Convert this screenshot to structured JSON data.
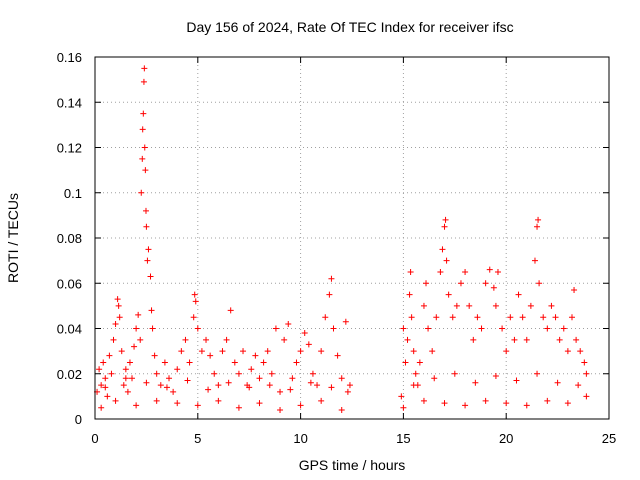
{
  "chart_data": {
    "type": "scatter",
    "title": "Day 156 of 2024, Rate Of TEC Index for receiver ifsc",
    "xlabel": "GPS time / hours",
    "ylabel": "ROTI / TECUs",
    "xlim": [
      0,
      25
    ],
    "ylim": [
      0,
      0.16
    ],
    "xticks": [
      0,
      5,
      10,
      15,
      20,
      25
    ],
    "yticks": [
      0,
      0.02,
      0.04,
      0.06,
      0.08,
      0.1,
      0.12,
      0.14,
      0.16
    ],
    "xtick_labels": [
      "0",
      "5",
      "10",
      "15",
      "20",
      "25"
    ],
    "ytick_labels": [
      "0",
      "0.02",
      "0.04",
      "0.06",
      "0.08",
      "0.1",
      "0.12",
      "0.14",
      "0.16"
    ],
    "grid": true,
    "marker": "+",
    "color": "#ff0000",
    "gaps_hours": [
      [
        12.5,
        14.8
      ]
    ],
    "series": [
      {
        "name": "ROTI",
        "points": [
          [
            0.1,
            0.012
          ],
          [
            0.2,
            0.022
          ],
          [
            0.3,
            0.015
          ],
          [
            0.4,
            0.025
          ],
          [
            0.5,
            0.018
          ],
          [
            0.6,
            0.01
          ],
          [
            0.7,
            0.028
          ],
          [
            0.8,
            0.02
          ],
          [
            0.9,
            0.035
          ],
          [
            1.0,
            0.042
          ],
          [
            1.1,
            0.053
          ],
          [
            1.15,
            0.05
          ],
          [
            1.2,
            0.045
          ],
          [
            1.3,
            0.03
          ],
          [
            1.4,
            0.015
          ],
          [
            1.5,
            0.022
          ],
          [
            1.6,
            0.012
          ],
          [
            1.7,
            0.025
          ],
          [
            1.8,
            0.018
          ],
          [
            1.9,
            0.032
          ],
          [
            2.0,
            0.04
          ],
          [
            2.1,
            0.046
          ],
          [
            2.2,
            0.035
          ],
          [
            2.25,
            0.1
          ],
          [
            2.3,
            0.115
          ],
          [
            2.32,
            0.128
          ],
          [
            2.35,
            0.135
          ],
          [
            2.38,
            0.149
          ],
          [
            2.4,
            0.155
          ],
          [
            2.42,
            0.12
          ],
          [
            2.45,
            0.11
          ],
          [
            2.48,
            0.092
          ],
          [
            2.5,
            0.085
          ],
          [
            2.55,
            0.07
          ],
          [
            2.6,
            0.075
          ],
          [
            2.7,
            0.063
          ],
          [
            2.75,
            0.048
          ],
          [
            2.8,
            0.04
          ],
          [
            2.9,
            0.028
          ],
          [
            3.0,
            0.02
          ],
          [
            3.2,
            0.015
          ],
          [
            3.4,
            0.025
          ],
          [
            3.6,
            0.018
          ],
          [
            3.8,
            0.012
          ],
          [
            4.0,
            0.022
          ],
          [
            4.2,
            0.03
          ],
          [
            4.4,
            0.035
          ],
          [
            4.6,
            0.025
          ],
          [
            4.8,
            0.045
          ],
          [
            4.85,
            0.055
          ],
          [
            4.9,
            0.052
          ],
          [
            5.0,
            0.04
          ],
          [
            5.2,
            0.03
          ],
          [
            5.4,
            0.035
          ],
          [
            5.6,
            0.028
          ],
          [
            5.8,
            0.02
          ],
          [
            6.0,
            0.015
          ],
          [
            6.2,
            0.03
          ],
          [
            6.4,
            0.035
          ],
          [
            6.6,
            0.048
          ],
          [
            6.8,
            0.025
          ],
          [
            7.0,
            0.02
          ],
          [
            7.2,
            0.03
          ],
          [
            7.4,
            0.015
          ],
          [
            7.6,
            0.022
          ],
          [
            7.8,
            0.028
          ],
          [
            8.0,
            0.018
          ],
          [
            8.2,
            0.025
          ],
          [
            8.4,
            0.03
          ],
          [
            8.6,
            0.02
          ],
          [
            8.8,
            0.04
          ],
          [
            9.0,
            0.012
          ],
          [
            9.2,
            0.035
          ],
          [
            9.4,
            0.042
          ],
          [
            9.6,
            0.018
          ],
          [
            9.8,
            0.025
          ],
          [
            10.0,
            0.03
          ],
          [
            10.2,
            0.038
          ],
          [
            10.4,
            0.033
          ],
          [
            10.6,
            0.02
          ],
          [
            10.8,
            0.015
          ],
          [
            11.0,
            0.03
          ],
          [
            11.2,
            0.045
          ],
          [
            11.4,
            0.055
          ],
          [
            11.5,
            0.062
          ],
          [
            11.6,
            0.04
          ],
          [
            11.8,
            0.028
          ],
          [
            12.0,
            0.018
          ],
          [
            12.2,
            0.043
          ],
          [
            12.4,
            0.015
          ],
          [
            0.3,
            0.005
          ],
          [
            1.0,
            0.008
          ],
          [
            2.0,
            0.006
          ],
          [
            3.0,
            0.008
          ],
          [
            4.0,
            0.007
          ],
          [
            5.0,
            0.006
          ],
          [
            6.0,
            0.008
          ],
          [
            7.0,
            0.005
          ],
          [
            8.0,
            0.007
          ],
          [
            9.0,
            0.004
          ],
          [
            10.0,
            0.006
          ],
          [
            11.0,
            0.008
          ],
          [
            12.0,
            0.004
          ],
          [
            0.5,
            0.014
          ],
          [
            1.5,
            0.018
          ],
          [
            2.5,
            0.016
          ],
          [
            3.5,
            0.014
          ],
          [
            4.5,
            0.017
          ],
          [
            5.5,
            0.013
          ],
          [
            6.5,
            0.016
          ],
          [
            7.5,
            0.014
          ],
          [
            8.5,
            0.015
          ],
          [
            9.5,
            0.013
          ],
          [
            10.5,
            0.016
          ],
          [
            11.5,
            0.014
          ],
          [
            12.3,
            0.012
          ],
          [
            14.9,
            0.01
          ],
          [
            15.0,
            0.04
          ],
          [
            15.1,
            0.025
          ],
          [
            15.2,
            0.035
          ],
          [
            15.3,
            0.055
          ],
          [
            15.35,
            0.065
          ],
          [
            15.4,
            0.045
          ],
          [
            15.5,
            0.03
          ],
          [
            15.6,
            0.02
          ],
          [
            15.7,
            0.015
          ],
          [
            15.8,
            0.025
          ],
          [
            16.0,
            0.05
          ],
          [
            16.1,
            0.06
          ],
          [
            16.2,
            0.04
          ],
          [
            16.4,
            0.03
          ],
          [
            16.6,
            0.045
          ],
          [
            16.8,
            0.065
          ],
          [
            16.9,
            0.075
          ],
          [
            17.0,
            0.085
          ],
          [
            17.05,
            0.088
          ],
          [
            17.1,
            0.07
          ],
          [
            17.2,
            0.055
          ],
          [
            17.4,
            0.045
          ],
          [
            17.6,
            0.05
          ],
          [
            17.8,
            0.06
          ],
          [
            18.0,
            0.065
          ],
          [
            18.2,
            0.05
          ],
          [
            18.4,
            0.035
          ],
          [
            18.6,
            0.045
          ],
          [
            18.8,
            0.04
          ],
          [
            19.0,
            0.06
          ],
          [
            19.2,
            0.066
          ],
          [
            19.4,
            0.058
          ],
          [
            19.5,
            0.05
          ],
          [
            19.6,
            0.065
          ],
          [
            19.8,
            0.04
          ],
          [
            20.0,
            0.03
          ],
          [
            20.2,
            0.045
          ],
          [
            20.4,
            0.035
          ],
          [
            20.6,
            0.055
          ],
          [
            20.8,
            0.045
          ],
          [
            21.0,
            0.035
          ],
          [
            21.2,
            0.05
          ],
          [
            21.4,
            0.07
          ],
          [
            21.5,
            0.085
          ],
          [
            21.55,
            0.088
          ],
          [
            21.6,
            0.06
          ],
          [
            21.8,
            0.045
          ],
          [
            22.0,
            0.04
          ],
          [
            22.2,
            0.05
          ],
          [
            22.4,
            0.045
          ],
          [
            22.6,
            0.035
          ],
          [
            22.8,
            0.04
          ],
          [
            23.0,
            0.03
          ],
          [
            23.2,
            0.045
          ],
          [
            23.3,
            0.057
          ],
          [
            23.4,
            0.035
          ],
          [
            23.6,
            0.03
          ],
          [
            23.8,
            0.025
          ],
          [
            23.9,
            0.02
          ],
          [
            15.0,
            0.005
          ],
          [
            16.0,
            0.008
          ],
          [
            17.0,
            0.007
          ],
          [
            18.0,
            0.006
          ],
          [
            19.0,
            0.008
          ],
          [
            20.0,
            0.007
          ],
          [
            21.0,
            0.006
          ],
          [
            22.0,
            0.008
          ],
          [
            23.0,
            0.007
          ],
          [
            23.9,
            0.01
          ],
          [
            15.5,
            0.015
          ],
          [
            16.5,
            0.018
          ],
          [
            17.5,
            0.02
          ],
          [
            18.5,
            0.016
          ],
          [
            19.5,
            0.019
          ],
          [
            20.5,
            0.017
          ],
          [
            21.5,
            0.02
          ],
          [
            22.5,
            0.016
          ],
          [
            23.5,
            0.015
          ]
        ]
      }
    ]
  }
}
